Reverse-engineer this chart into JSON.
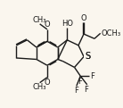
{
  "bg_color": "#faf6ee",
  "bond_color": "#1a1a1a",
  "bond_width": 1.0,
  "font_size": 6.0,
  "xlim": [
    0.0,
    7.5
  ],
  "ylim": [
    1.5,
    9.5
  ]
}
